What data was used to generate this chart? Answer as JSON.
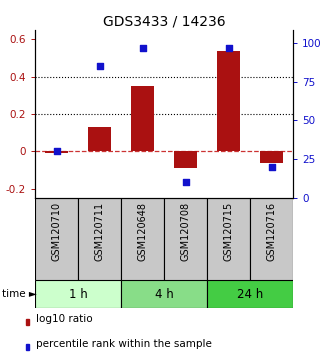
{
  "title": "GDS3433 / 14236",
  "samples": [
    "GSM120710",
    "GSM120711",
    "GSM120648",
    "GSM120708",
    "GSM120715",
    "GSM120716"
  ],
  "log10_ratio": [
    -0.01,
    0.13,
    0.35,
    -0.09,
    0.54,
    -0.065
  ],
  "percentile_rank": [
    30,
    85,
    97,
    10,
    97,
    20
  ],
  "time_groups": [
    {
      "label": "1 h",
      "indices": [
        0,
        1
      ],
      "color": "#ccffcc"
    },
    {
      "label": "4 h",
      "indices": [
        2,
        3
      ],
      "color": "#88dd88"
    },
    {
      "label": "24 h",
      "indices": [
        4,
        5
      ],
      "color": "#44cc44"
    }
  ],
  "bar_color": "#aa1111",
  "dot_color": "#1111cc",
  "ylim_left": [
    -0.25,
    0.65
  ],
  "ylim_right": [
    0,
    108.33
  ],
  "yticks_left": [
    -0.2,
    0.0,
    0.2,
    0.4,
    0.6
  ],
  "ytick_labels_left": [
    "-0.2",
    "0",
    "0.2",
    "0.4",
    "0.6"
  ],
  "yticks_right": [
    0,
    25,
    50,
    75,
    100
  ],
  "ytick_labels_right": [
    "0",
    "25",
    "50",
    "75",
    "100%"
  ],
  "hlines": [
    0.4,
    0.2
  ],
  "zero_line_color": "#cc3333",
  "hline_color": "#000000",
  "legend_items": [
    "log10 ratio",
    "percentile rank within the sample"
  ],
  "bar_width": 0.55,
  "sample_box_color": "#c8c8c8",
  "title_fontsize": 10,
  "tick_fontsize": 7.5
}
